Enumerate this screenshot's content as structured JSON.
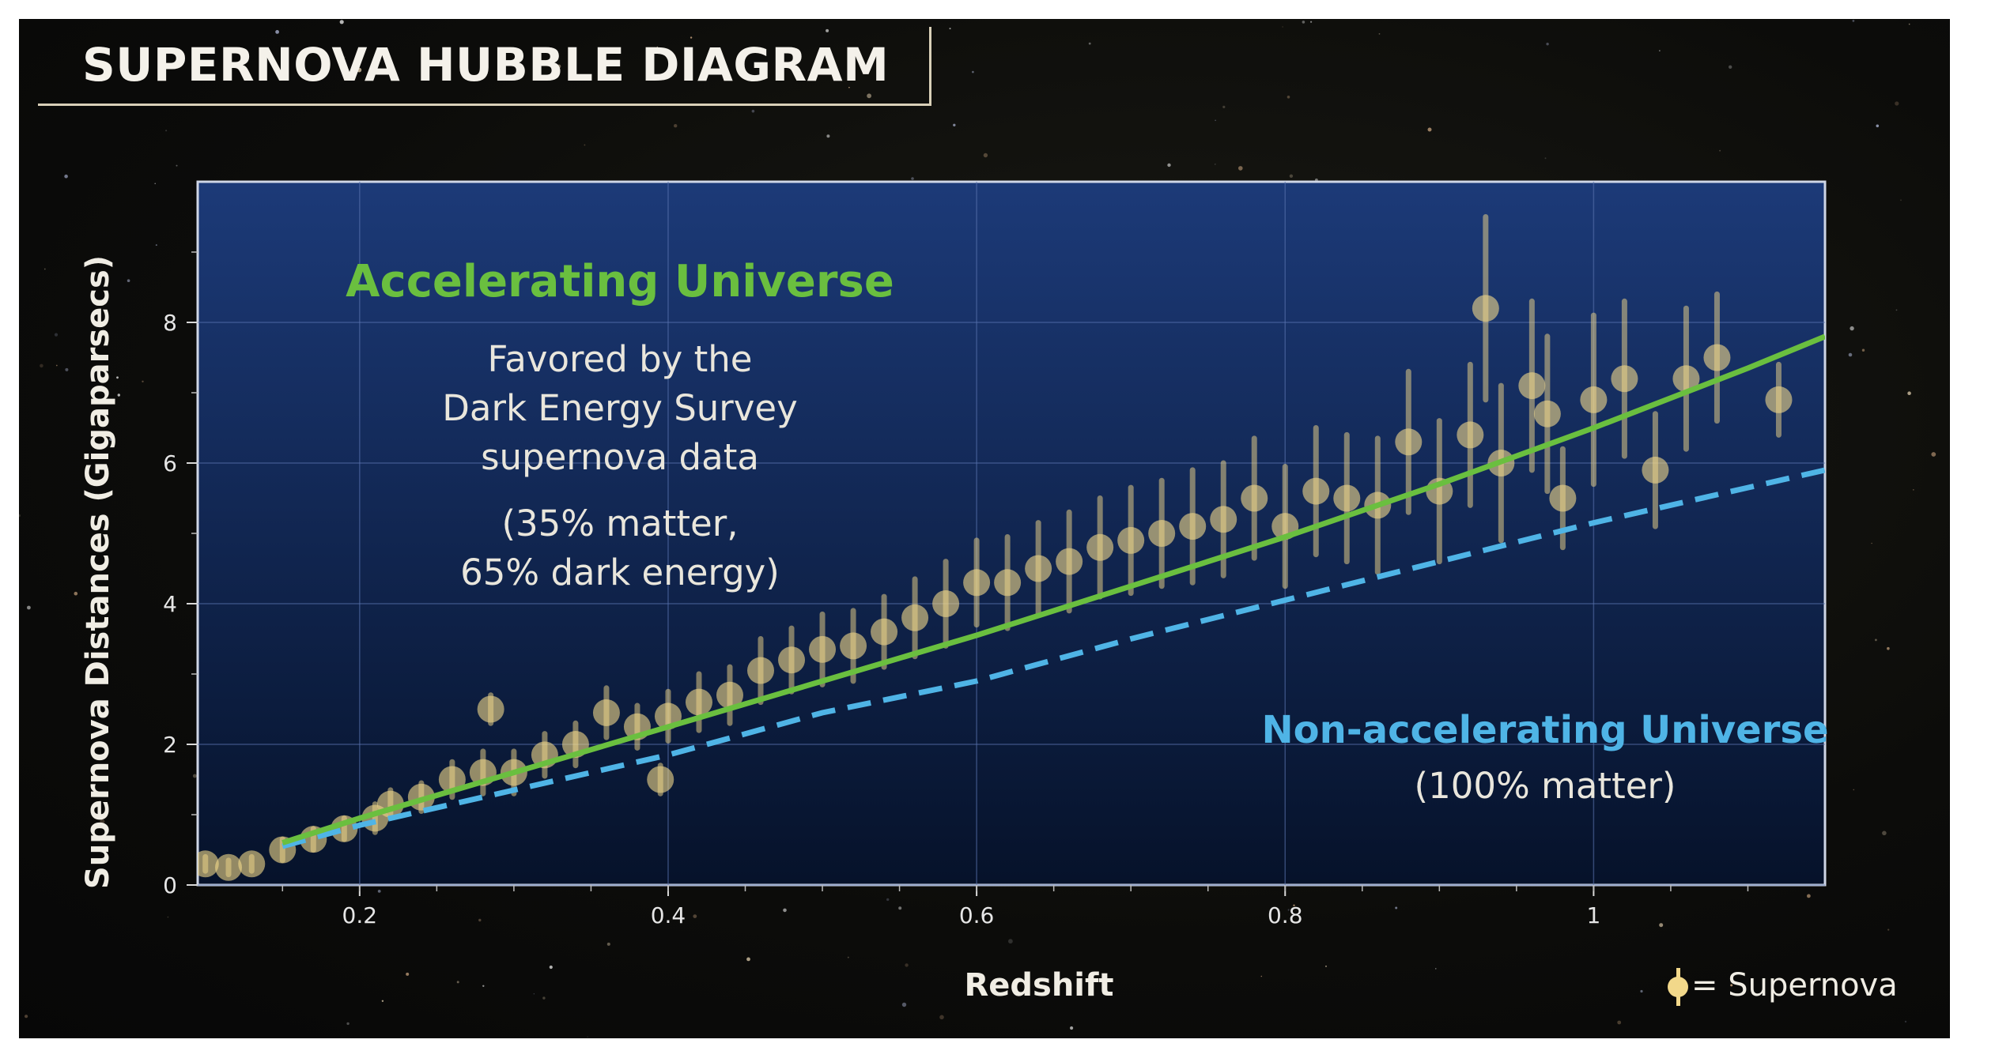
{
  "header": {
    "title": "SUPERNOVA HUBBLE DIAGRAM"
  },
  "annotations": {
    "accelerating_title": "Accelerating Universe",
    "accelerating_body": [
      "Favored by the",
      "Dark Energy Survey",
      "supernova data"
    ],
    "accelerating_mix": [
      "(35% matter,",
      "65% dark energy)"
    ],
    "nonaccelerating_title": "Non-accelerating Universe",
    "nonaccelerating_sub": "(100% matter)"
  },
  "legend": {
    "label": "= Supernova"
  },
  "colors": {
    "background": "#0c0c0a",
    "plot_top": "#1c3a78",
    "plot_bottom": "#06122a",
    "accelerating": "#6abf3f",
    "nonaccelerating": "#4fb4e6",
    "supernova": "#f2d88a"
  },
  "chart_data": {
    "type": "scatter",
    "title": "SUPERNOVA HUBBLE DIAGRAM",
    "xlabel": "Redshift",
    "ylabel": "Supernova Distances (Gigaparsecs)",
    "xlim": [
      0.095,
      1.15
    ],
    "ylim": [
      0,
      10
    ],
    "xticks": [
      0.2,
      0.4,
      0.6,
      0.8,
      1
    ],
    "xtick_labels": [
      "0.2",
      "0.4",
      "0.6",
      "0.8",
      "1"
    ],
    "yticks": [
      0,
      2,
      4,
      6,
      8
    ],
    "ytick_labels": [
      "0",
      "2",
      "4",
      "6",
      "8"
    ],
    "grid": true,
    "series": [
      {
        "name": "Accelerating Universe",
        "style": "solid",
        "x": [
          0.15,
          0.2,
          0.3,
          0.4,
          0.5,
          0.6,
          0.7,
          0.8,
          0.9,
          1.0,
          1.1,
          1.15
        ],
        "y": [
          0.6,
          0.95,
          1.6,
          2.25,
          2.9,
          3.55,
          4.25,
          4.95,
          5.7,
          6.5,
          7.35,
          7.8
        ]
      },
      {
        "name": "Non-accelerating Universe",
        "style": "dashed",
        "x": [
          0.15,
          0.2,
          0.3,
          0.4,
          0.5,
          0.6,
          0.7,
          0.8,
          0.9,
          1.0,
          1.1,
          1.15
        ],
        "y": [
          0.55,
          0.85,
          1.35,
          1.85,
          2.45,
          2.9,
          3.5,
          4.05,
          4.6,
          5.15,
          5.65,
          5.9
        ]
      },
      {
        "name": "Supernova",
        "style": "markers",
        "x": [
          0.1,
          0.115,
          0.13,
          0.15,
          0.17,
          0.19,
          0.21,
          0.22,
          0.24,
          0.26,
          0.28,
          0.285,
          0.3,
          0.32,
          0.34,
          0.36,
          0.38,
          0.395,
          0.4,
          0.42,
          0.44,
          0.46,
          0.48,
          0.5,
          0.52,
          0.54,
          0.56,
          0.58,
          0.6,
          0.62,
          0.64,
          0.66,
          0.68,
          0.7,
          0.72,
          0.74,
          0.76,
          0.78,
          0.8,
          0.82,
          0.84,
          0.86,
          0.88,
          0.9,
          0.92,
          0.93,
          0.94,
          0.96,
          0.97,
          0.98,
          1.0,
          1.02,
          1.04,
          1.06,
          1.08,
          1.12
        ],
        "y": [
          0.3,
          0.25,
          0.3,
          0.5,
          0.65,
          0.8,
          0.95,
          1.15,
          1.25,
          1.5,
          1.6,
          2.5,
          1.6,
          1.85,
          2.0,
          2.45,
          2.25,
          1.5,
          2.4,
          2.6,
          2.7,
          3.05,
          3.2,
          3.35,
          3.4,
          3.6,
          3.8,
          4.0,
          4.3,
          4.3,
          4.5,
          4.6,
          4.8,
          4.9,
          5.0,
          5.1,
          5.2,
          5.5,
          5.1,
          5.6,
          5.5,
          5.4,
          6.3,
          5.6,
          6.4,
          8.2,
          6.0,
          7.1,
          6.7,
          5.5,
          6.9,
          7.2,
          5.9,
          7.2,
          7.5,
          6.9
        ],
        "yerr": [
          0.1,
          0.1,
          0.1,
          0.15,
          0.15,
          0.15,
          0.2,
          0.2,
          0.2,
          0.25,
          0.3,
          0.2,
          0.3,
          0.3,
          0.3,
          0.35,
          0.3,
          0.2,
          0.35,
          0.4,
          0.4,
          0.45,
          0.45,
          0.5,
          0.5,
          0.5,
          0.55,
          0.6,
          0.6,
          0.65,
          0.65,
          0.7,
          0.7,
          0.75,
          0.75,
          0.8,
          0.8,
          0.85,
          0.85,
          0.9,
          0.9,
          0.95,
          1.0,
          1.0,
          1.0,
          1.3,
          1.1,
          1.2,
          1.1,
          0.7,
          1.2,
          1.1,
          0.8,
          1.0,
          0.9,
          0.5
        ]
      }
    ]
  }
}
